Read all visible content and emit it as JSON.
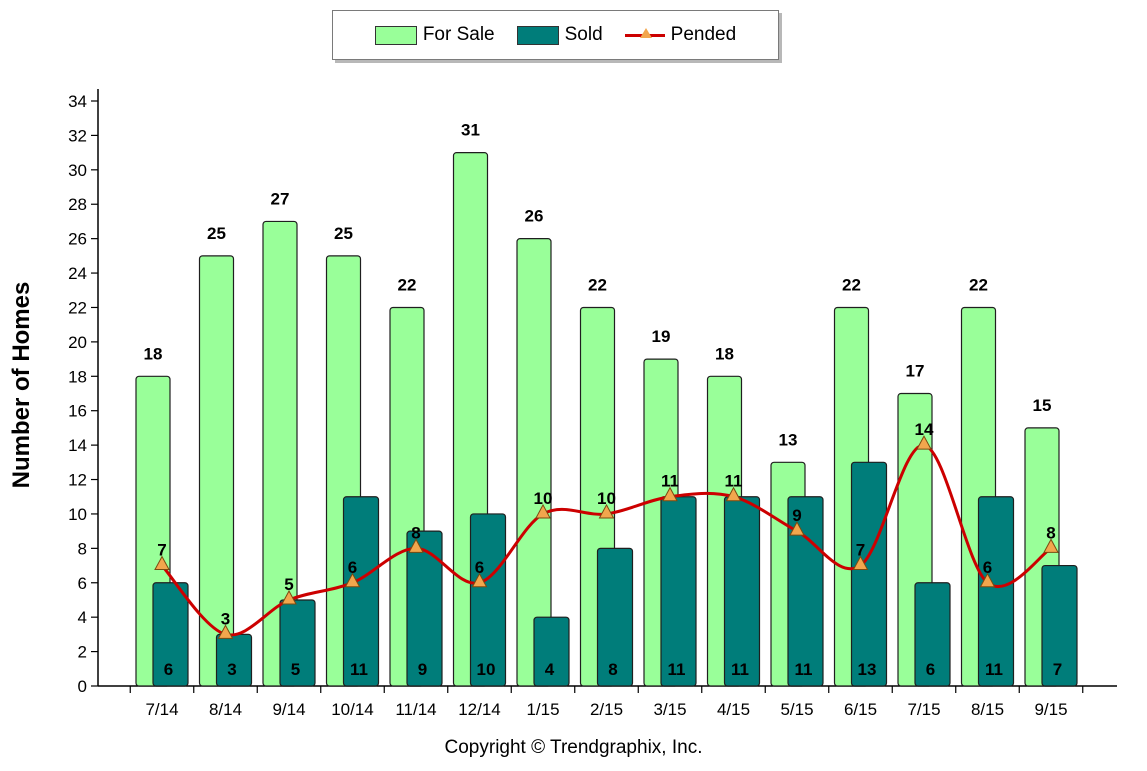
{
  "chart_data": {
    "type": "bar",
    "categories": [
      "7/14",
      "8/14",
      "9/14",
      "10/14",
      "11/14",
      "12/14",
      "1/15",
      "2/15",
      "3/15",
      "4/15",
      "5/15",
      "6/15",
      "7/15",
      "8/15",
      "9/15"
    ],
    "series": [
      {
        "name": "For Sale",
        "type": "bar",
        "color": "#99ff99",
        "values": [
          18,
          25,
          27,
          25,
          22,
          31,
          26,
          22,
          19,
          18,
          13,
          22,
          17,
          22,
          15
        ]
      },
      {
        "name": "Sold",
        "type": "bar",
        "color": "#007d7a",
        "values": [
          6,
          3,
          5,
          11,
          9,
          10,
          4,
          8,
          11,
          11,
          11,
          13,
          6,
          11,
          7
        ]
      },
      {
        "name": "Pended",
        "type": "line",
        "color": "#cc0000",
        "marker_color": "#f2a64d",
        "values": [
          7,
          3,
          5,
          6,
          8,
          6,
          10,
          10,
          11,
          11,
          9,
          7,
          14,
          6,
          8
        ]
      }
    ],
    "ylabel": "Number of Homes",
    "xlabel": "",
    "ylim": [
      0,
      34
    ],
    "yticks": [
      0,
      2,
      4,
      6,
      8,
      10,
      12,
      14,
      16,
      18,
      20,
      22,
      24,
      26,
      28,
      30,
      32,
      34
    ],
    "legend": "top-center"
  },
  "legend_labels": {
    "for_sale": "For Sale",
    "sold": "Sold",
    "pended": "Pended"
  },
  "colors": {
    "for_sale": "#99ff99",
    "sold": "#007d7a",
    "pended_line": "#cc0000",
    "pended_marker": "#f2a64d"
  },
  "footer": {
    "copyright": "Copyright © Trendgraphix, Inc."
  }
}
